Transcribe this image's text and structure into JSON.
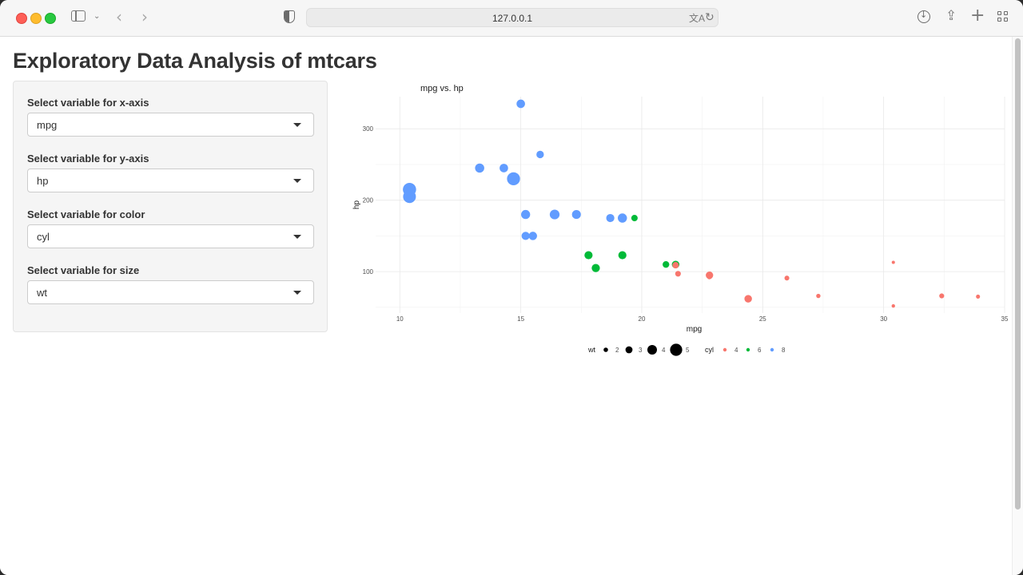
{
  "browser": {
    "url": "127.0.0.1",
    "icons": [
      "sidebar-icon",
      "chevron-down-icon",
      "back-icon",
      "forward-icon",
      "shield-icon",
      "translate-icon",
      "reload-icon",
      "download-icon",
      "share-icon",
      "plus-icon",
      "tabs-grid-icon"
    ]
  },
  "page": {
    "title": "Exploratory Data Analysis of mtcars"
  },
  "controls": [
    {
      "label": "Select variable for x-axis",
      "value": "mpg"
    },
    {
      "label": "Select variable for y-axis",
      "value": "hp"
    },
    {
      "label": "Select variable for color",
      "value": "cyl"
    },
    {
      "label": "Select variable for size",
      "value": "wt"
    }
  ],
  "chart_data": {
    "type": "scatter",
    "title": "mpg vs. hp",
    "xlabel": "mpg",
    "ylabel": "hp",
    "xlim": [
      9.0,
      35.0
    ],
    "ylim": [
      42,
      345
    ],
    "xticks": [
      10,
      15,
      20,
      25,
      30,
      35
    ],
    "yticks": [
      100,
      200,
      300
    ],
    "grid": true,
    "legend_position": "bottom",
    "colors": {
      "4": "#F8766D",
      "6": "#00BA38",
      "8": "#619CFF"
    },
    "size_legend": {
      "title": "wt",
      "levels": [
        2,
        3,
        4,
        5
      ]
    },
    "color_legend": {
      "title": "cyl",
      "levels": [
        "4",
        "6",
        "8"
      ]
    },
    "points": [
      {
        "x": 21.0,
        "y": 110,
        "cyl": "6",
        "wt": 2.62
      },
      {
        "x": 21.0,
        "y": 110,
        "cyl": "6",
        "wt": 2.875
      },
      {
        "x": 22.8,
        "y": 93,
        "cyl": "4",
        "wt": 2.32
      },
      {
        "x": 21.4,
        "y": 110,
        "cyl": "6",
        "wt": 3.215
      },
      {
        "x": 18.7,
        "y": 175,
        "cyl": "8",
        "wt": 3.44
      },
      {
        "x": 18.1,
        "y": 105,
        "cyl": "6",
        "wt": 3.46
      },
      {
        "x": 14.3,
        "y": 245,
        "cyl": "8",
        "wt": 3.57
      },
      {
        "x": 24.4,
        "y": 62,
        "cyl": "4",
        "wt": 3.19
      },
      {
        "x": 22.8,
        "y": 95,
        "cyl": "4",
        "wt": 3.15
      },
      {
        "x": 19.2,
        "y": 123,
        "cyl": "6",
        "wt": 3.44
      },
      {
        "x": 17.8,
        "y": 123,
        "cyl": "6",
        "wt": 3.44
      },
      {
        "x": 16.4,
        "y": 180,
        "cyl": "8",
        "wt": 4.07
      },
      {
        "x": 17.3,
        "y": 180,
        "cyl": "8",
        "wt": 3.73
      },
      {
        "x": 15.2,
        "y": 180,
        "cyl": "8",
        "wt": 3.78
      },
      {
        "x": 10.4,
        "y": 205,
        "cyl": "8",
        "wt": 5.25
      },
      {
        "x": 10.4,
        "y": 215,
        "cyl": "8",
        "wt": 5.424
      },
      {
        "x": 14.7,
        "y": 230,
        "cyl": "8",
        "wt": 5.345
      },
      {
        "x": 32.4,
        "y": 66,
        "cyl": "4",
        "wt": 2.2
      },
      {
        "x": 30.4,
        "y": 52,
        "cyl": "4",
        "wt": 1.615
      },
      {
        "x": 33.9,
        "y": 65,
        "cyl": "4",
        "wt": 1.835
      },
      {
        "x": 21.5,
        "y": 97,
        "cyl": "4",
        "wt": 2.465
      },
      {
        "x": 15.5,
        "y": 150,
        "cyl": "8",
        "wt": 3.52
      },
      {
        "x": 15.2,
        "y": 150,
        "cyl": "8",
        "wt": 3.435
      },
      {
        "x": 13.3,
        "y": 245,
        "cyl": "8",
        "wt": 3.84
      },
      {
        "x": 19.2,
        "y": 175,
        "cyl": "8",
        "wt": 3.845
      },
      {
        "x": 27.3,
        "y": 66,
        "cyl": "4",
        "wt": 1.935
      },
      {
        "x": 26.0,
        "y": 91,
        "cyl": "4",
        "wt": 2.14
      },
      {
        "x": 30.4,
        "y": 113,
        "cyl": "4",
        "wt": 1.513
      },
      {
        "x": 15.8,
        "y": 264,
        "cyl": "8",
        "wt": 3.17
      },
      {
        "x": 19.7,
        "y": 175,
        "cyl": "6",
        "wt": 2.77
      },
      {
        "x": 15.0,
        "y": 335,
        "cyl": "8",
        "wt": 3.57
      },
      {
        "x": 21.4,
        "y": 109,
        "cyl": "4",
        "wt": 2.78
      }
    ]
  }
}
